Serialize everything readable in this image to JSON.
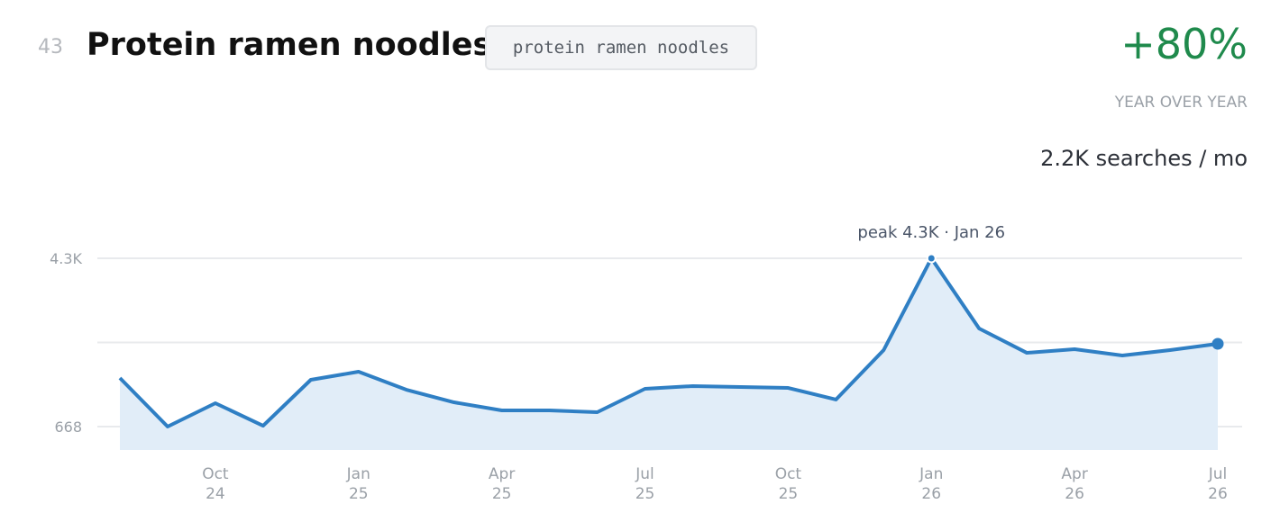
{
  "header": {
    "rank": "43",
    "title": "Protein ramen noodles",
    "keyword": "protein ramen noodles",
    "change": "+80%",
    "change_label": "YEAR OVER YEAR",
    "volume": "2.2K searches / mo"
  },
  "chart_data": {
    "type": "area",
    "annotation": "peak 4.3K · Jan 26",
    "color": "#2f7fc4",
    "fill": "#e1edf8",
    "categories": [
      null,
      null,
      "Oct 24",
      null,
      null,
      "Jan 25",
      null,
      null,
      "Apr 25",
      null,
      null,
      "Jul 25",
      null,
      null,
      "Oct 25",
      null,
      null,
      "Jan 26",
      null,
      null,
      "Apr 26",
      null,
      null,
      "Jul 26"
    ],
    "values": [
      1717,
      668,
      1173,
      687,
      1678,
      1853,
      1464,
      1192,
      1018,
      1018,
      979,
      1484,
      1542,
      1522,
      1503,
      1251,
      2319,
      4300,
      2785,
      2260,
      2338,
      2202,
      2319,
      2455
    ],
    "ylim": [
      163,
      4300
    ],
    "yticks": [
      {
        "value": 668,
        "label": "668"
      },
      {
        "value": 2484,
        "label": null
      },
      {
        "value": 4300,
        "label": "4.3K"
      }
    ],
    "grid": true
  }
}
